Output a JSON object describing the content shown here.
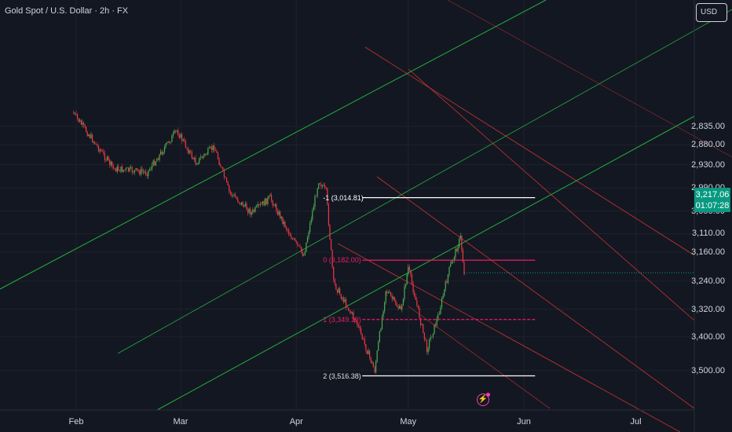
{
  "header": {
    "title": "Gold Spot / U.S. Dollar · 2h · FX"
  },
  "currency": {
    "label": "USD"
  },
  "price_axis": {
    "ticks": [
      "3,500.00",
      "3,400.00",
      "3,320.00",
      "3,240.00",
      "3,160.00",
      "3,110.00",
      "3,050.00",
      "2,990.00",
      "2,930.00",
      "2,880.00",
      "2,835.00"
    ]
  },
  "time_axis": {
    "ticks": [
      "Feb",
      "Mar",
      "Apr",
      "May",
      "Jun",
      "Jul"
    ]
  },
  "last_price": {
    "price": "3,217.06",
    "countdown": "01:07:28"
  },
  "fib_levels": [
    {
      "label": "2 (3,516.38)",
      "value": 3516.38
    },
    {
      "label": "1 (3,349.19)",
      "value": 3349.19
    },
    {
      "label": "0 (3,182.00)",
      "value": 3182.0
    },
    {
      "label": "-1 (3,014.81)",
      "value": 3014.81
    }
  ],
  "chart_data": {
    "type": "candlestick",
    "title": "Gold Spot / U.S. Dollar · 2h · FX",
    "y_scale": "log",
    "ylim": [
      2800,
      3650
    ],
    "x_range": [
      "2025-01-27",
      "2025-07-17"
    ],
    "interval": "2h",
    "last_price": 3217.06,
    "swing_points": [
      {
        "date": "2025-01-31",
        "price": 2800
      },
      {
        "date": "2025-02-11",
        "price": 2940
      },
      {
        "date": "2025-02-20",
        "price": 2950
      },
      {
        "date": "2025-02-28",
        "price": 2845
      },
      {
        "date": "2025-03-05",
        "price": 2925
      },
      {
        "date": "2025-03-10",
        "price": 2885
      },
      {
        "date": "2025-03-14",
        "price": 3000
      },
      {
        "date": "2025-03-20",
        "price": 3055
      },
      {
        "date": "2025-03-25",
        "price": 3015
      },
      {
        "date": "2025-03-31",
        "price": 3125
      },
      {
        "date": "2025-04-03",
        "price": 3168
      },
      {
        "date": "2025-04-07",
        "price": 2970
      },
      {
        "date": "2025-04-09",
        "price": 3000
      },
      {
        "date": "2025-04-11",
        "price": 3245
      },
      {
        "date": "2025-04-17",
        "price": 3355
      },
      {
        "date": "2025-04-22",
        "price": 3500
      },
      {
        "date": "2025-04-25",
        "price": 3265
      },
      {
        "date": "2025-04-29",
        "price": 3325
      },
      {
        "date": "2025-05-01",
        "price": 3202
      },
      {
        "date": "2025-05-06",
        "price": 3435
      },
      {
        "date": "2025-05-09",
        "price": 3340
      },
      {
        "date": "2025-05-12",
        "price": 3208
      },
      {
        "date": "2025-05-15",
        "price": 3120
      },
      {
        "date": "2025-05-16",
        "price": 3217.06
      }
    ],
    "zones": [
      {
        "label": "2 (3,516.38)",
        "low": 3480,
        "high": 3590,
        "color": "#2b1a22"
      },
      {
        "label": "1 (3,349.19)",
        "low": 3315,
        "high": 3385,
        "color": "#1c1e55"
      },
      {
        "label": "0 (3,182.00)",
        "low": 3150,
        "high": 3210,
        "color": "#1c1e55"
      },
      {
        "label": "-1 (3,014.81)",
        "low": 2985,
        "high": 3045,
        "color": "#16331f"
      }
    ],
    "colors": {
      "up": "#089981",
      "down": "#f23645",
      "up_candles": "#4caf50",
      "background": "#131722",
      "fib_line": "#e91e63",
      "channel_up": "#26c940",
      "channel_down": "#e53935"
    },
    "grid": true
  }
}
